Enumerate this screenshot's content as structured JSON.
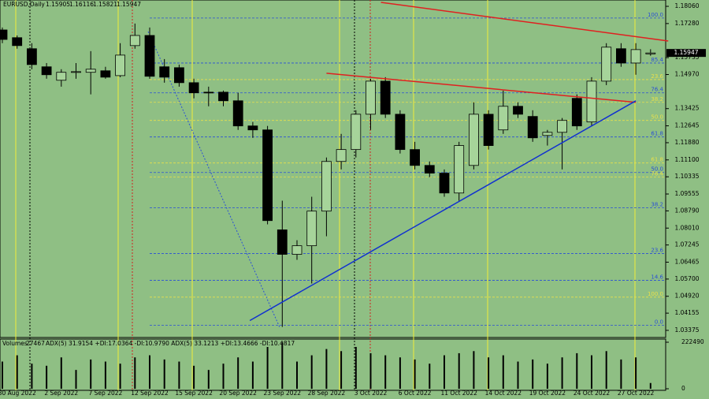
{
  "chart_data": {
    "type": "candlestick",
    "title": "EURUSD,Daily",
    "categories": [
      null,
      "30 Aug 2022",
      null,
      null,
      "2 Sep 2022",
      null,
      null,
      "7 Sep 2022",
      null,
      null,
      "12 Sep 2022",
      null,
      null,
      "15 Sep 2022",
      null,
      null,
      "20 Sep 2022",
      null,
      null,
      "23 Sep 2022",
      null,
      null,
      "28 Sep 2022",
      null,
      null,
      "3 Oct 2022",
      null,
      null,
      "6 Oct 2022",
      null,
      null,
      "11 Oct 2022",
      null,
      null,
      "14 Oct 2022",
      null,
      null,
      "19 Oct 2022",
      null,
      null,
      "24 Oct 2022",
      null,
      null,
      "27 Oct 2022",
      null
    ],
    "open": [
      1.1699,
      1.1664,
      1.1614,
      1.1532,
      1.1471,
      1.1507,
      1.1507,
      1.1514,
      1.1492,
      1.1628,
      1.1674,
      1.1532,
      1.1528,
      1.146,
      1.1417,
      1.1417,
      1.1378,
      1.1264,
      1.1246,
      1.0793,
      1.0682,
      1.0721,
      1.0878,
      1.1103,
      1.1157,
      1.1317,
      1.1467,
      1.1317,
      1.1157,
      1.1085,
      1.105,
      1.096,
      1.1085,
      1.1317,
      1.1246,
      1.1353,
      1.1307,
      1.1221,
      1.1235,
      1.1389,
      1.1282,
      1.1467,
      1.1614,
      1.1549,
      1.15905
    ],
    "high": [
      1.171,
      1.1674,
      1.1639,
      1.1549,
      1.1521,
      1.1549,
      1.1603,
      1.1532,
      1.1639,
      1.1728,
      1.171,
      1.1567,
      1.1542,
      1.1478,
      1.1442,
      1.1424,
      1.1414,
      1.1282,
      1.1264,
      1.0925,
      1.0746,
      1.0943,
      1.1121,
      1.1228,
      1.1335,
      1.1478,
      1.1485,
      1.1335,
      1.1192,
      1.1103,
      1.1067,
      1.1192,
      1.1371,
      1.1335,
      1.1424,
      1.1371,
      1.1335,
      1.1246,
      1.13,
      1.1407,
      1.1485,
      1.1639,
      1.1639,
      1.1639,
      1.16116
    ],
    "low": [
      1.1639,
      1.1614,
      1.1521,
      1.1478,
      1.1442,
      1.1478,
      1.1407,
      1.1478,
      1.1485,
      1.1614,
      1.1478,
      1.146,
      1.1442,
      1.1389,
      1.1353,
      1.1353,
      1.1246,
      1.121,
      1.0818,
      1.0353,
      1.0657,
      1.055,
      1.0764,
      1.1067,
      1.1121,
      1.1246,
      1.13,
      1.1139,
      1.1067,
      1.1032,
      1.0943,
      1.0925,
      1.1067,
      1.1157,
      1.1228,
      1.13,
      1.1192,
      1.1175,
      1.1067,
      1.1246,
      1.1264,
      1.1449,
      1.1532,
      1.1496,
      1.15821
    ],
    "close": [
      1.1656,
      1.1628,
      1.1542,
      1.1496,
      1.1507,
      1.151,
      1.1521,
      1.1485,
      1.1585,
      1.1674,
      1.1489,
      1.1485,
      1.146,
      1.1414,
      1.1414,
      1.1378,
      1.1264,
      1.1246,
      1.0835,
      1.0682,
      1.0721,
      1.0878,
      1.1103,
      1.1157,
      1.1317,
      1.1467,
      1.1317,
      1.1157,
      1.1085,
      1.105,
      1.096,
      1.1175,
      1.1317,
      1.1175,
      1.1353,
      1.1317,
      1.121,
      1.1235,
      1.1289,
      1.1264,
      1.1467,
      1.1621,
      1.1549,
      1.161,
      1.15947
    ],
    "colors": {
      "up": "#a6d49a",
      "down": "#000000",
      "wick": "#000000"
    },
    "ylim": [
      1.0298,
      1.1824
    ],
    "yticks": [
      {
        "value": 1.1806,
        "label": "1.18060"
      },
      {
        "value": 1.1728,
        "label": "1.17280"
      },
      1.15735,
      {
        "value": 1.1497,
        "label": "1.14970"
      },
      1.13425,
      1.12645,
      {
        "value": 1.1188,
        "label": "1.11880"
      },
      {
        "value": 1.111,
        "label": "1.11100"
      },
      1.10335,
      1.09555,
      {
        "value": 1.0879,
        "label": "1.08790"
      },
      {
        "value": 1.0801,
        "label": "1.08010"
      },
      1.07245,
      1.06465,
      {
        "value": 1.057,
        "label": "1.05700"
      },
      {
        "value": 1.0492,
        "label": "1.04920"
      },
      1.04155,
      1.03375
    ],
    "fib_levels": [
      {
        "label": "100.0",
        "value": 1.1753,
        "color": "#2a4fd6"
      },
      {
        "label": "85.4",
        "value": 1.1549,
        "color": "#2a4fd6"
      },
      {
        "label": "76.4",
        "value": 1.1414,
        "color": "#2a4fd6"
      },
      {
        "label": "61.8",
        "value": 1.1214,
        "color": "#2a4fd6"
      },
      {
        "label": "50.0",
        "value": 1.1053,
        "color": "#2a4fd6"
      },
      {
        "label": "38.2",
        "value": 1.0893,
        "color": "#2a4fd6"
      },
      {
        "label": "23.6",
        "value": 1.0686,
        "color": "#2a4fd6"
      },
      {
        "label": "14.6",
        "value": 1.0564,
        "color": "#2a4fd6"
      },
      {
        "label": "0.0",
        "value": 1.036,
        "color": "#2a4fd6"
      },
      {
        "label": "23.6",
        "value": 1.1474,
        "color": "#e8e04a"
      },
      {
        "label": "38.2",
        "value": 1.1371,
        "color": "#e8e04a"
      },
      {
        "label": "50.0",
        "value": 1.1289,
        "color": "#e8e04a"
      },
      {
        "label": "61.8",
        "value": 1.1096,
        "color": "#e8e04a"
      },
      {
        "label": "76.4",
        "value": 1.1032,
        "color": "#e8e04a"
      },
      {
        "label": "100.0",
        "value": 1.0488,
        "color": "#e8e04a"
      }
    ],
    "trendlines": [
      {
        "color": "#e02020",
        "start": [
          25.7,
          1.1824
        ],
        "end": [
          45.2,
          1.1649
        ]
      },
      {
        "color": "#e02020",
        "start": [
          22.0,
          1.1503
        ],
        "end": [
          43.0,
          1.1371
        ]
      },
      {
        "color": "#1030d0",
        "start": [
          16.8,
          1.0382
        ],
        "end": [
          43.0,
          1.1378
        ]
      }
    ],
    "volume": {
      "label": "Volumes",
      "values": [
        130000,
        160000,
        120000,
        110000,
        150000,
        90000,
        140000,
        130000,
        120000,
        150000,
        160000,
        140000,
        130000,
        110000,
        90000,
        120000,
        150000,
        130000,
        200000,
        222000,
        130000,
        160000,
        190000,
        180000,
        200000,
        170000,
        160000,
        150000,
        140000,
        120000,
        160000,
        170000,
        180000,
        150000,
        160000,
        130000,
        140000,
        120000,
        150000,
        170000,
        160000,
        180000,
        140000,
        150000,
        27467
      ],
      "ylim": [
        0,
        222490
      ],
      "yticks": [
        222490,
        0
      ]
    },
    "indicator_text": "ADX(5) 31.9154 +DI:17.0364 -DI:10.9790  ADX(5) 33.1213 +DI:13.4666 -DI:10.4817"
  }
}
